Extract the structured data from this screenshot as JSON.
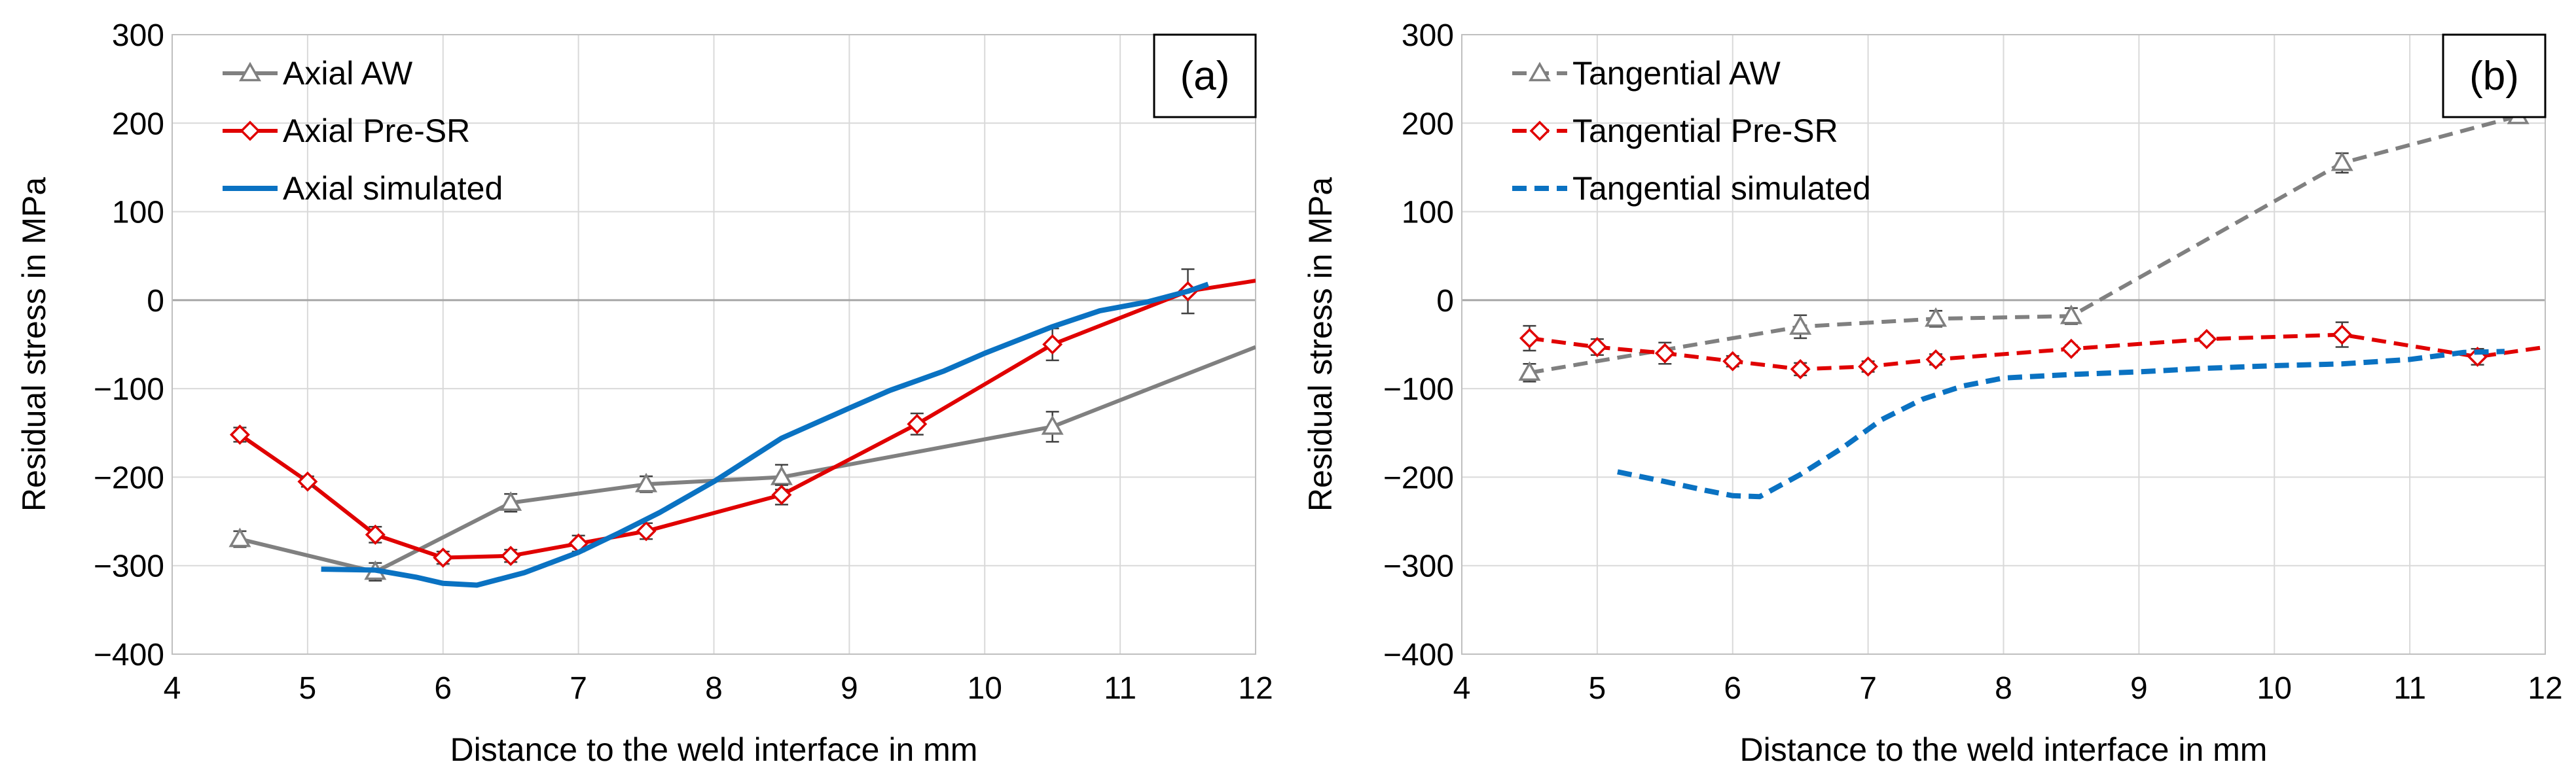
{
  "chart_data": [
    {
      "type": "line",
      "panel_label": "(a)",
      "xlabel": "Distance to the weld interface in mm",
      "ylabel": "Residual stress in MPa",
      "xlim": [
        4,
        12
      ],
      "ylim": [
        -400,
        300
      ],
      "x_ticks": [
        "4",
        "5",
        "6",
        "7",
        "8",
        "9",
        "10",
        "11",
        "12"
      ],
      "y_ticks": [
        "300",
        "200",
        "100",
        "0",
        "−100",
        "−200",
        "−300",
        "−400"
      ],
      "grid": true,
      "legend_position": "top-left",
      "series": [
        {
          "name": "Axial AW",
          "color": "#808080",
          "line": "solid",
          "marker": "triangle",
          "points": [
            [
              4.5,
              -270
            ],
            [
              5.5,
              -307
            ],
            [
              6.5,
              -229
            ],
            [
              7.5,
              -208
            ],
            [
              8.5,
              -200
            ],
            [
              10.5,
              -143
            ],
            [
              12.0,
              -53
            ]
          ],
          "errors": [
            9,
            10,
            10,
            9,
            14,
            17,
            0
          ]
        },
        {
          "name": "Axial Pre-SR",
          "color": "#e00000",
          "line": "solid",
          "marker": "diamond",
          "points": [
            [
              4.5,
              -152
            ],
            [
              5.0,
              -205
            ],
            [
              5.5,
              -265
            ],
            [
              6.0,
              -291
            ],
            [
              6.5,
              -289
            ],
            [
              7.0,
              -275
            ],
            [
              7.5,
              -261
            ],
            [
              8.5,
              -220
            ],
            [
              9.5,
              -140
            ],
            [
              10.5,
              -50
            ],
            [
              11.5,
              10
            ],
            [
              12.0,
              22
            ]
          ],
          "errors": [
            8,
            6,
            9,
            7,
            7,
            9,
            9,
            11,
            12,
            18,
            25,
            0
          ]
        },
        {
          "name": "Axial simulated",
          "color": "#0a72c2",
          "line": "solid",
          "marker": "none",
          "points": [
            [
              5.1,
              -304
            ],
            [
              5.5,
              -305
            ],
            [
              5.8,
              -313
            ],
            [
              6.0,
              -320
            ],
            [
              6.25,
              -322
            ],
            [
              6.6,
              -308
            ],
            [
              7.0,
              -285
            ],
            [
              7.3,
              -263
            ],
            [
              7.6,
              -240
            ],
            [
              8.0,
              -205
            ],
            [
              8.5,
              -156
            ],
            [
              9.0,
              -122
            ],
            [
              9.3,
              -102
            ],
            [
              9.7,
              -80
            ],
            [
              10.0,
              -60
            ],
            [
              10.5,
              -30
            ],
            [
              10.85,
              -12
            ],
            [
              11.2,
              -2
            ],
            [
              11.5,
              10
            ],
            [
              11.65,
              18
            ]
          ]
        }
      ]
    },
    {
      "type": "line",
      "panel_label": "(b)",
      "xlabel": "Distance to the weld interface in mm",
      "ylabel": "Residual stress in MPa",
      "xlim": [
        4,
        12
      ],
      "ylim": [
        -400,
        300
      ],
      "x_ticks": [
        "4",
        "5",
        "6",
        "7",
        "8",
        "9",
        "10",
        "11",
        "12"
      ],
      "y_ticks": [
        "300",
        "200",
        "100",
        "0",
        "−100",
        "−200",
        "−300",
        "−400"
      ],
      "grid": true,
      "legend_position": "top-left",
      "series": [
        {
          "name": "Tangential AW",
          "color": "#808080",
          "line": "dashed",
          "marker": "triangle",
          "points": [
            [
              4.5,
              -82
            ],
            [
              6.5,
              -30
            ],
            [
              7.5,
              -21
            ],
            [
              8.5,
              -18
            ],
            [
              10.5,
              155
            ],
            [
              11.8,
              208
            ]
          ],
          "errors": [
            10,
            13,
            9,
            9,
            11,
            0
          ]
        },
        {
          "name": "Tangential Pre-SR",
          "color": "#e00000",
          "line": "dashed",
          "marker": "diamond",
          "points": [
            [
              4.5,
              -43
            ],
            [
              5.0,
              -53
            ],
            [
              5.5,
              -60
            ],
            [
              6.0,
              -69
            ],
            [
              6.5,
              -78
            ],
            [
              7.0,
              -75
            ],
            [
              7.5,
              -67
            ],
            [
              8.5,
              -55
            ],
            [
              9.5,
              -44
            ],
            [
              10.5,
              -39
            ],
            [
              11.5,
              -64
            ],
            [
              12.0,
              -53
            ]
          ],
          "errors": [
            14,
            9,
            12,
            6,
            7,
            6,
            6,
            4,
            4,
            14,
            9,
            0
          ]
        },
        {
          "name": "Tangential simulated",
          "color": "#0a72c2",
          "line": "dashed",
          "marker": "none",
          "points": [
            [
              5.15,
              -194
            ],
            [
              5.5,
              -205
            ],
            [
              5.8,
              -215
            ],
            [
              6.0,
              -221
            ],
            [
              6.2,
              -222
            ],
            [
              6.5,
              -197
            ],
            [
              6.8,
              -168
            ],
            [
              7.1,
              -135
            ],
            [
              7.4,
              -112
            ],
            [
              7.7,
              -97
            ],
            [
              8.0,
              -88
            ],
            [
              8.5,
              -84
            ],
            [
              9.0,
              -81
            ],
            [
              9.5,
              -77
            ],
            [
              10.0,
              -74
            ],
            [
              10.5,
              -72
            ],
            [
              11.0,
              -67
            ],
            [
              11.4,
              -59
            ],
            [
              11.7,
              -58
            ]
          ]
        }
      ]
    }
  ]
}
